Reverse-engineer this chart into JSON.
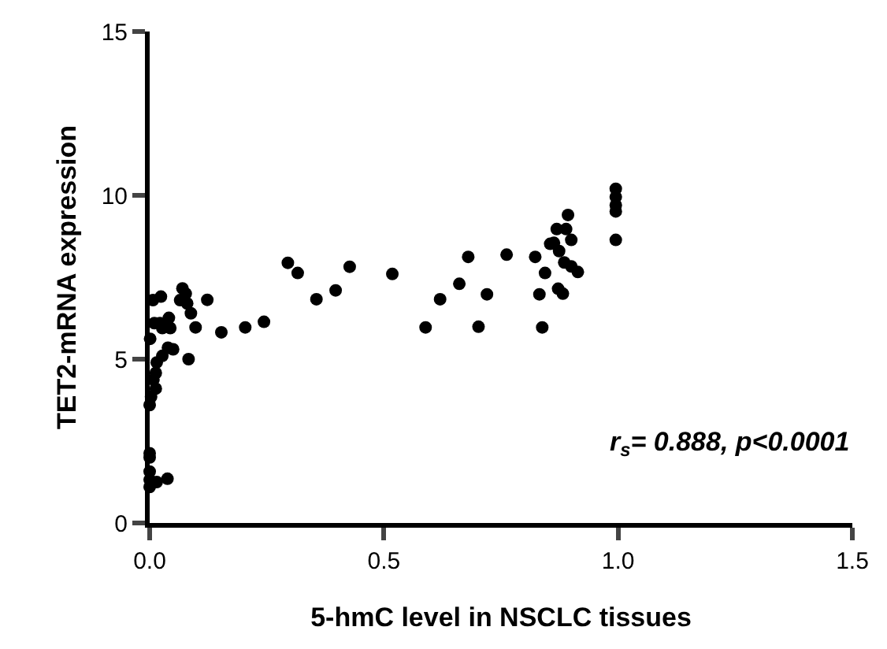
{
  "chart_data": {
    "type": "scatter",
    "xlabel": "5-hmC level in NSCLC tissues",
    "ylabel": "TET2-mRNA expression",
    "xlim": [
      0,
      1.5
    ],
    "xticks": [
      {
        "value": 0,
        "label": "0.0"
      },
      0.5,
      {
        "value": 1,
        "label": "1.0"
      },
      1.5
    ],
    "ylim": [
      0,
      15
    ],
    "yticks": [
      0,
      5,
      10,
      15
    ],
    "legend": false,
    "marker": "circle",
    "annotations": [
      "r$_{s}$= 0.888, p<0.0001"
    ],
    "series": [
      {
        "color": "#000000",
        "x": [
          0.295,
          0.316,
          0.427,
          0.518,
          0.356,
          0.397,
          0.244,
          0.204,
          0.153,
          0.123,
          0.098,
          0.083,
          0.07,
          0.077,
          0.065,
          0.08,
          0.088,
          0.024,
          0.007,
          0.041,
          0.022,
          0.044,
          0.027,
          0.01,
          0.001,
          0.039,
          0.05,
          0.027,
          0.015,
          0.013,
          0.008,
          0.013,
          0.003,
          0.0,
          0.0,
          0.0,
          0.0,
          0.0,
          0.015,
          0.038,
          0.0,
          0.589,
          0.702,
          0.838,
          0.62,
          0.661,
          0.72,
          0.68,
          0.762,
          0.823,
          0.844,
          0.832,
          0.872,
          0.882,
          0.855,
          0.869,
          0.889,
          0.893,
          0.874,
          0.9,
          0.885,
          0.9,
          0.914,
          0.863,
          0.995,
          0.995,
          0.995,
          0.995,
          0.995
        ],
        "values": [
          7.94,
          7.63,
          7.82,
          7.6,
          6.83,
          7.1,
          6.14,
          5.97,
          5.82,
          6.81,
          5.97,
          5.0,
          7.16,
          7.0,
          6.8,
          6.7,
          6.4,
          6.91,
          6.8,
          6.26,
          6.1,
          5.95,
          5.95,
          6.1,
          5.62,
          5.35,
          5.3,
          5.1,
          4.9,
          4.58,
          4.37,
          4.1,
          3.85,
          3.6,
          2.13,
          2.0,
          1.57,
          1.32,
          1.25,
          1.35,
          1.1,
          5.97,
          5.99,
          5.97,
          6.83,
          7.3,
          6.98,
          8.12,
          8.19,
          8.12,
          7.63,
          6.98,
          7.15,
          7.0,
          8.52,
          8.97,
          8.97,
          9.4,
          8.3,
          8.64,
          7.95,
          7.83,
          7.66,
          8.55,
          8.64,
          9.51,
          9.95,
          10.2,
          9.7
        ]
      }
    ]
  }
}
